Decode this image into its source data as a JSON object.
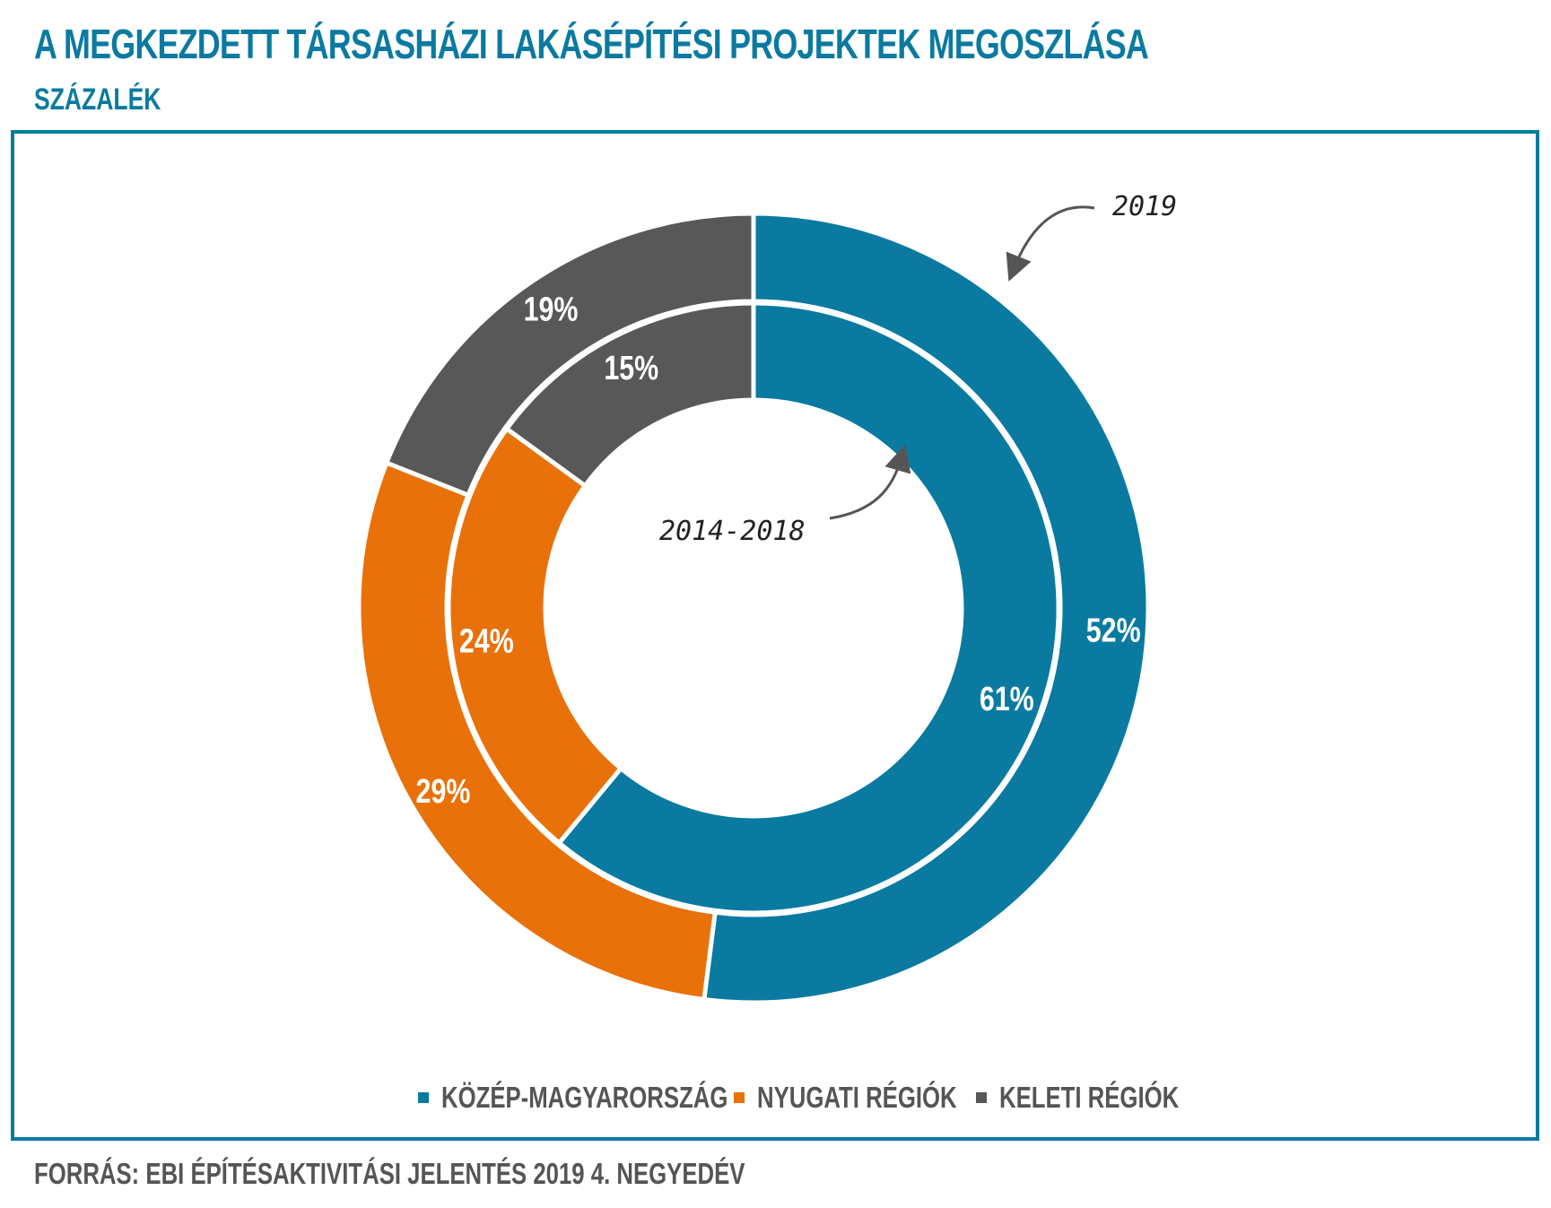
{
  "title": "A MEGKEZDETT TÁRSASHÁZI LAKÁSÉPÍTÉSI PROJEKTEK MEGOSZLÁSA",
  "subtitle": "SZÁZALÉK",
  "source": "FORRÁS: EBI ÉPÍTÉSAKTIVITÁSI JELENTÉS 2019 4. NEGYEDÉV",
  "colors": {
    "accent": "#0a7aa1",
    "kozep": "#0a7aa1",
    "nyugati": "#e8710a",
    "keleti": "#585858",
    "text": "#555555"
  },
  "chart_data": {
    "type": "donut",
    "categories": [
      "KÖZÉP-MAGYARORSZÁG",
      "NYUGATI RÉGIÓK",
      "KELETI RÉGIÓK"
    ],
    "series": [
      {
        "name": "2019",
        "ring": "outer",
        "values": [
          52,
          29,
          19
        ],
        "labels": [
          "52%",
          "29%",
          "19%"
        ]
      },
      {
        "name": "2014-2018",
        "ring": "inner",
        "values": [
          61,
          24,
          15
        ],
        "labels": [
          "61%",
          "24%",
          "15%"
        ]
      }
    ],
    "annotations": [
      "2019",
      "2014-2018"
    ],
    "legend_position": "bottom"
  }
}
